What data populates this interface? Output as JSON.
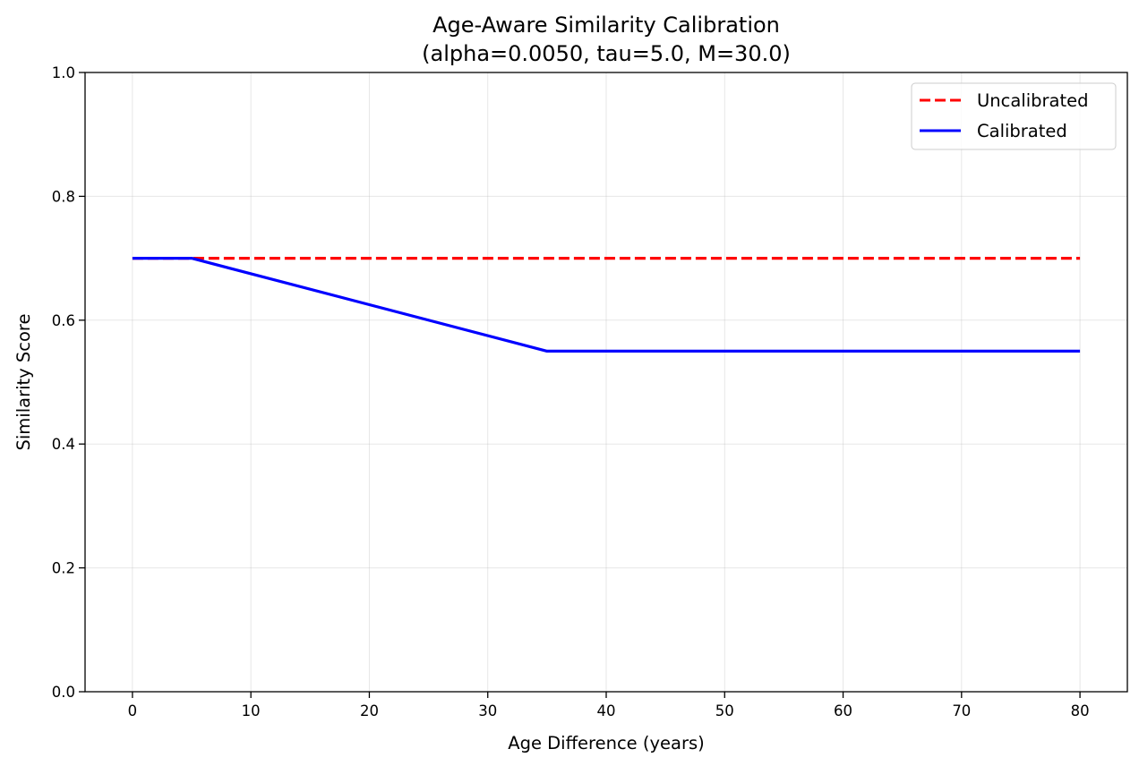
{
  "chart_data": {
    "type": "line",
    "title": "Age-Aware Similarity Calibration",
    "subtitle": "(alpha=0.0050, tau=5.0, M=30.0)",
    "xlabel": "Age Difference (years)",
    "ylabel": "Similarity Score",
    "xlim": [
      -4,
      84
    ],
    "ylim": [
      0.0,
      1.0
    ],
    "xticks": [
      0,
      10,
      20,
      30,
      40,
      50,
      60,
      70,
      80
    ],
    "xtick_labels": [
      "0",
      "10",
      "20",
      "30",
      "40",
      "50",
      "60",
      "70",
      "80"
    ],
    "yticks": [
      0.0,
      0.2,
      0.4,
      0.6,
      0.8,
      1.0
    ],
    "ytick_labels": [
      "0.0",
      "0.2",
      "0.4",
      "0.6",
      "0.8",
      "1.0"
    ],
    "grid": true,
    "legend_position": "top-right",
    "series": [
      {
        "name": "Uncalibrated",
        "color": "#ff0000",
        "style": "dashed",
        "x": [
          0,
          80
        ],
        "y": [
          0.7,
          0.7
        ]
      },
      {
        "name": "Calibrated",
        "color": "#0000ff",
        "style": "solid",
        "x": [
          0,
          5,
          35,
          80
        ],
        "y": [
          0.7,
          0.7,
          0.55,
          0.55
        ]
      }
    ]
  }
}
